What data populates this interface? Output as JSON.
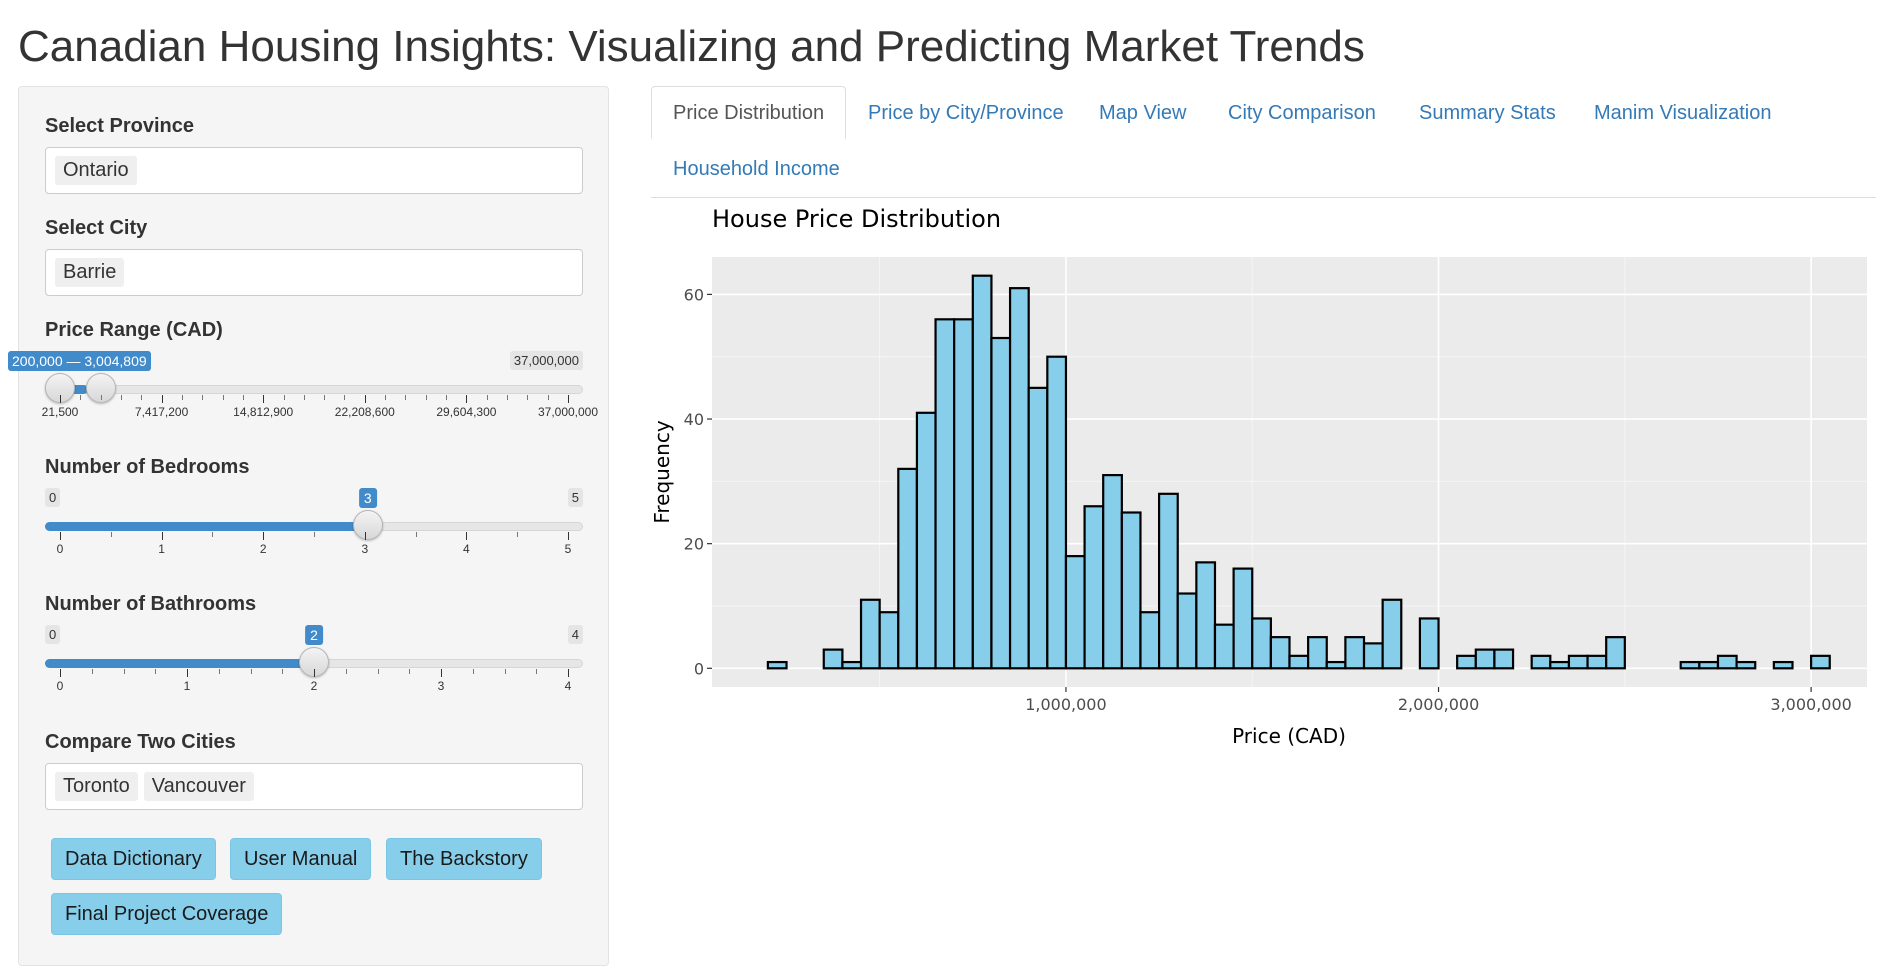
{
  "app": {
    "title": "Canadian Housing Insights: Visualizing and Predicting Market Trends"
  },
  "sidebar": {
    "province": {
      "label": "Select Province",
      "selected": [
        "Ontario"
      ]
    },
    "city": {
      "label": "Select City",
      "selected": [
        "Barrie"
      ]
    },
    "price_range": {
      "label": "Price Range (CAD)",
      "min": 21500,
      "max": 37000000,
      "from": 200000,
      "to": 3004809,
      "range_text": "200,000 — 3,004,809",
      "max_text": "37,000,000",
      "ticks": [
        "21,500",
        "7,417,200",
        "14,812,900",
        "22,208,600",
        "29,604,300",
        "37,000,000"
      ]
    },
    "bedrooms": {
      "label": "Number of Bedrooms",
      "min": 0,
      "max": 5,
      "value": 3,
      "min_text": "0",
      "max_text": "5",
      "value_text": "3",
      "ticks": [
        "0",
        "1",
        "2",
        "3",
        "4",
        "5"
      ]
    },
    "bathrooms": {
      "label": "Number of Bathrooms",
      "min": 0,
      "max": 4,
      "value": 2,
      "min_text": "0",
      "max_text": "4",
      "value_text": "2",
      "ticks": [
        "0",
        "1",
        "2",
        "3",
        "4"
      ]
    },
    "compare": {
      "label": "Compare Two Cities",
      "selected": [
        "Toronto",
        "Vancouver"
      ]
    },
    "buttons": [
      "Data Dictionary",
      "User Manual",
      "The Backstory",
      "Final Project Coverage"
    ]
  },
  "tabs": {
    "active": "Price Distribution",
    "items": [
      "Price Distribution",
      "Price by City/Province",
      "Map View",
      "City Comparison",
      "Summary Stats",
      "Manim Visualization",
      "Household Income"
    ]
  },
  "chart_data": {
    "type": "bar",
    "title": "House Price Distribution",
    "xlabel": "Price (CAD)",
    "ylabel": "Frequency",
    "xlim": [
      50000,
      3150000
    ],
    "ylim": [
      -3,
      66
    ],
    "xticks": [
      1000000,
      2000000,
      3000000
    ],
    "xtick_labels": [
      "1,000,000",
      "2,000,000",
      "3,000,000"
    ],
    "yticks": [
      0,
      20,
      40,
      60
    ],
    "ytick_labels": [
      "0",
      "20",
      "40",
      "60"
    ],
    "bin_start": 200000,
    "bin_width": 50000,
    "values": [
      1,
      0,
      0,
      3,
      1,
      11,
      9,
      32,
      41,
      56,
      56,
      63,
      53,
      61,
      45,
      50,
      18,
      26,
      31,
      25,
      9,
      28,
      12,
      17,
      7,
      16,
      8,
      5,
      2,
      5,
      1,
      5,
      4,
      11,
      0,
      8,
      0,
      2,
      3,
      3,
      0,
      2,
      1,
      2,
      2,
      5,
      0,
      0,
      0,
      1,
      1,
      2,
      1,
      0,
      1,
      0,
      2
    ],
    "bar_fill": "#87ceeb",
    "panel_bg": "#ebebeb",
    "grid": true
  }
}
